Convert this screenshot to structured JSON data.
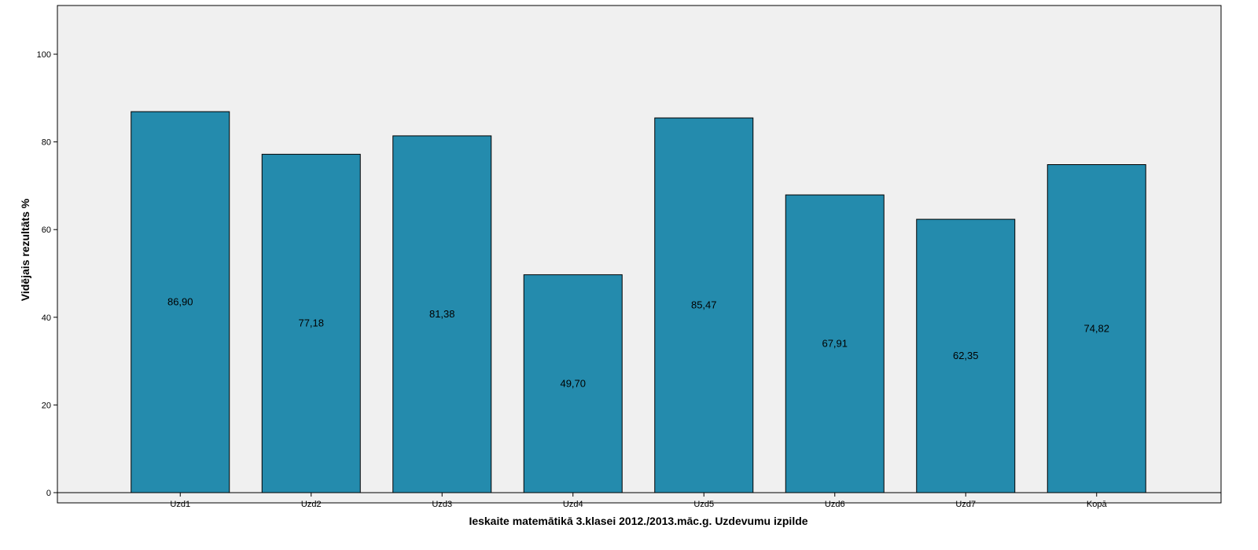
{
  "chart_data": {
    "type": "bar",
    "title": "",
    "xlabel": "Ieskaite matemātikā 3.klasei 2012./2013.māc.g. Uzdevumu izpilde",
    "ylabel": "Vidējais rezultāts %",
    "categories": [
      "Uzd1",
      "Uzd2",
      "Uzd3",
      "Uzd4",
      "Uzd5",
      "Uzd6",
      "Uzd7",
      "Kopā"
    ],
    "values": [
      86.9,
      77.18,
      81.38,
      49.7,
      85.47,
      67.91,
      62.35,
      74.82
    ],
    "value_labels": [
      "86,90",
      "77,18",
      "81,38",
      "49,70",
      "85,47",
      "67,91",
      "62,35",
      "74,82"
    ],
    "yticks": [
      0,
      20,
      40,
      60,
      80,
      100
    ],
    "ylim": [
      0,
      111
    ],
    "grid": false,
    "legend": "none",
    "colors": {
      "bar_fill": "#248bad",
      "bar_stroke": "#000000",
      "plot_background": "#f0f0f0",
      "axis": "#000000"
    }
  }
}
